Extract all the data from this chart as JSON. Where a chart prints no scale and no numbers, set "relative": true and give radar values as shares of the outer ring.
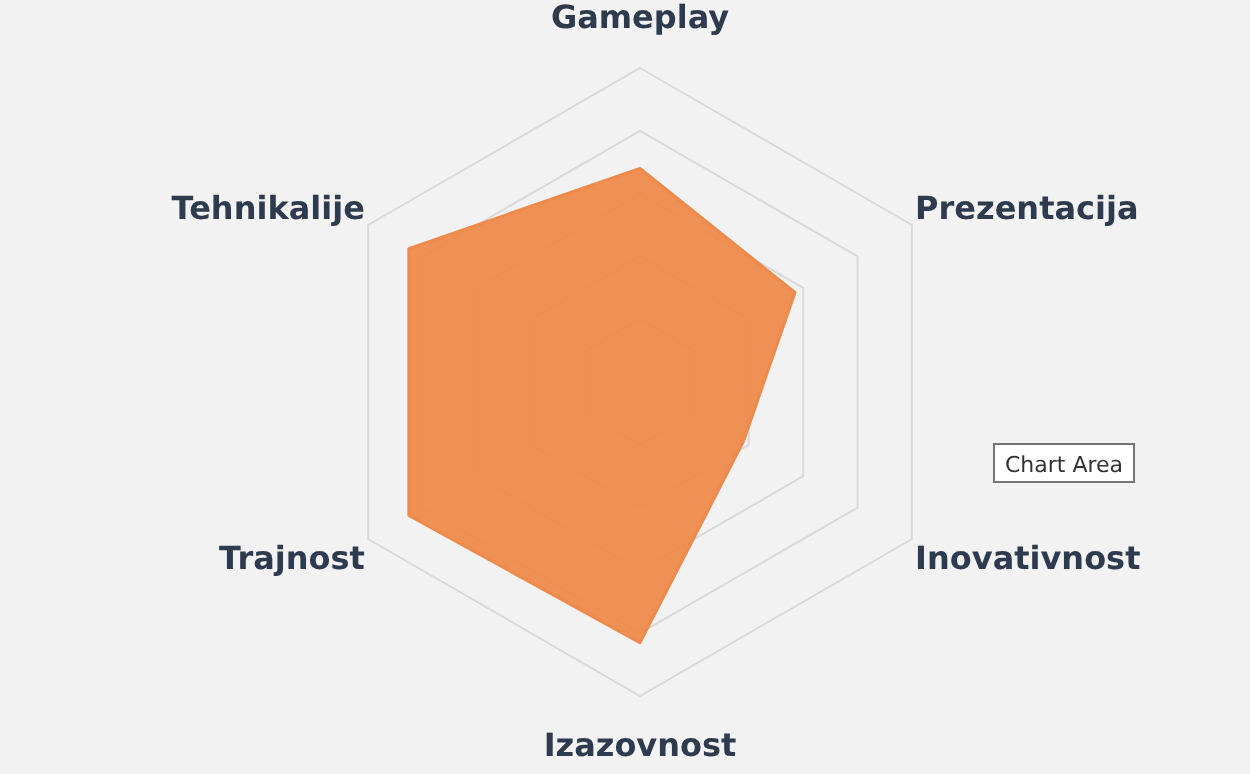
{
  "chart_data": {
    "type": "radar",
    "relative": true,
    "categories": [
      "Gameplay",
      "Prezentacija",
      "Inovativnost",
      "Izazovnost",
      "Trajnost",
      "Tehnikalije"
    ],
    "series": [
      {
        "color": "#ee8a4c",
        "values": [
          0.68,
          0.57,
          0.38,
          0.83,
          0.85,
          0.85
        ]
      }
    ],
    "grid": true,
    "marker": "none",
    "annotations": [
      "Chart Area"
    ]
  }
}
